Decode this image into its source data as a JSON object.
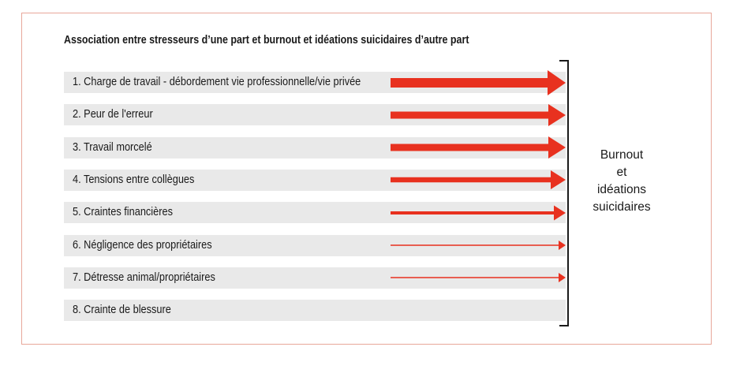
{
  "title": "Association entre stresseurs d’une part et burnout et idéations suicidaires d’autre part",
  "arrow_color": "#e8311f",
  "rows": [
    {
      "label": "1. Charge de travail - débordement vie professionnelle/vie privée",
      "strength": 5
    },
    {
      "label": "2. Peur de l'erreur",
      "strength": 4
    },
    {
      "label": "3. Travail morcelé",
      "strength": 4
    },
    {
      "label": "4. Tensions entre collègues",
      "strength": 3
    },
    {
      "label": "5. Craintes financières",
      "strength": 2
    },
    {
      "label": "6. Négligence des propriétaires",
      "strength": 1
    },
    {
      "label": "7. Détresse animal/propriétaires",
      "strength": 1
    },
    {
      "label": "8. Crainte de blessure",
      "strength": 0
    }
  ],
  "outcome": {
    "line1": "Burnout",
    "line2": "et",
    "line3": "idéations",
    "line4": "suicidaires"
  }
}
